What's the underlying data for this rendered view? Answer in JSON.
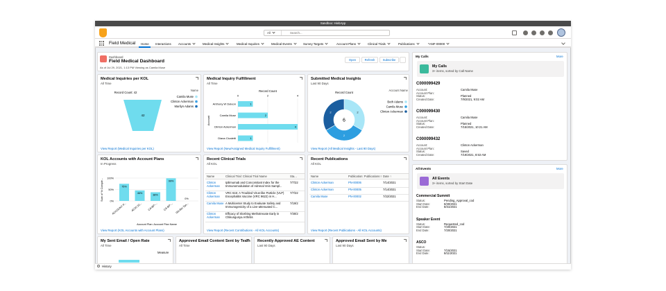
{
  "system_bar": {
    "title": "Sandbox: HiebApp"
  },
  "header": {
    "search_scope": "All",
    "search_placeholder": "Search..."
  },
  "nav": {
    "app_name": "Field Medical",
    "tabs": [
      "Home",
      "Interactions",
      "Accounts",
      "Medical Insights",
      "Medical Inquiries",
      "Medical Events",
      "Survey Targets",
      "Account Plans",
      "Clinical Trials",
      "Publications",
      "*ANF-00000"
    ]
  },
  "dashboard": {
    "label": "Dashboard",
    "title": "Field Medical Dashboard",
    "subtitle": "As of Jul 29, 2021, 1:13 PM·Viewing as Camila Muse",
    "buttons": [
      "Open",
      "Refresh",
      "Subscribe"
    ]
  },
  "widgets": [
    {
      "type": "funnel",
      "title": "Medical Inquiries per KOL",
      "subtitle": "All Time",
      "axis_label": "Record Count: 42",
      "legend_title": "Name",
      "legend": [
        {
          "name": "Camila Muse",
          "color": "#a8e6f7"
        },
        {
          "name": "Clinton Ackerman",
          "color": "#3ca1e6"
        },
        {
          "name": "Marilyn Adams",
          "color": "#1b6fb8"
        }
      ],
      "segments": [
        {
          "value": 42,
          "color": "#6fdcee"
        }
      ],
      "footer": "View Report (Medical Inquiries per KOL)"
    },
    {
      "type": "hbar",
      "title": "Medical Inquiry Fulfillment",
      "subtitle": "All Time",
      "axis_label": "Record Count",
      "y_axis_label": "Account",
      "categories": [
        "Anthony W Deleon",
        "Camila Muse",
        "Clinton Ackerman",
        "Diana Cicaletti"
      ],
      "values": [
        1,
        2,
        4,
        1
      ],
      "xlim": [
        0,
        4
      ],
      "xticks": [
        0,
        2,
        4
      ],
      "color": "#6fdcee",
      "footer": "View Report (New/Assigned Medical Inquiry Fulfillment)"
    },
    {
      "type": "donut",
      "title": "Submitted Medical Insights",
      "subtitle": "Last 90 Days",
      "axis_label": "Record Count",
      "legend_title": "Account Name",
      "total": 6,
      "segments": [
        {
          "name": "Beth Adams",
          "color": "#a8e6f7",
          "value": 2
        },
        {
          "name": "Camila Muse",
          "color": "#2d9ee0",
          "value": 2
        },
        {
          "name": "Clinton Ackerman",
          "color": "#1b5e9f",
          "value": 2
        }
      ],
      "footer": "View Report (All Medical Insights - Last 90 Days)"
    },
    {
      "type": "vbar",
      "title": "KOL Accounts with Account Plans",
      "subtitle": "In Progress",
      "y_axis_label": "Sum of % Comple...",
      "x_axis_label": "Account Plan: Account Plan Name",
      "categories": [
        "ACCOUNT P...",
        "AC00 20...",
        "CA-BP-...",
        "CA-BP-...",
        "Gls-Bin Tan..."
      ],
      "values": [
        75,
        46,
        38,
        99,
        0
      ],
      "value_labels": [
        "75%",
        "46%",
        "38%",
        "99%",
        "0%"
      ],
      "ylim": [
        0,
        100
      ],
      "yticks": [
        {
          "value": 0,
          "label": "0%"
        },
        {
          "value": 50,
          "label": "50%"
        },
        {
          "value": 100,
          "label": "100%"
        }
      ],
      "color": "#6fdcee",
      "footer": "View Report (KOL Accounts with Account Plans)"
    },
    {
      "type": "table",
      "title": "Recent Clinical Trials",
      "subtitle": "All KOL",
      "columns": [
        "Name",
        "Clinical Trial: Clinical Trial Name",
        "Sta..."
      ],
      "rows": [
        [
          "Clinton Ackerman",
          "Ipilimumab and Concomitant Index for the Immunomodulation of Adrenal Vein Sampl...",
          "7/7/22"
        ],
        [
          "Clinton Ackerman",
          "VRC 615: A Troubled Virus-like Particle (VLP) Encephalitis Vaccine (VRC 9622) in H...",
          "7/7/22"
        ],
        [
          "Camila Muse",
          "A Multicenter Study to Evaluate Safety and Immunogenicity of a Live-attenuated C...",
          "7/19/2"
        ],
        [
          "Clinton Ackerman",
          "Efficacy of Sloshing Methotrexate Early in Chikungunya Arthritis",
          "7/30/2"
        ]
      ],
      "footer": "View Report (Recent Contributions - All KOL Accounts)"
    },
    {
      "type": "table",
      "title": "Recent Publications",
      "subtitle": "All KOL",
      "columns": [
        "Name",
        "Publication: Publications ID",
        "Date ↑"
      ],
      "rows": [
        [
          "Clinton Ackerman",
          "PN-00006",
          "7/14/2021"
        ],
        [
          "Clinton Ackerman",
          "PN-00005",
          "7/14/2021"
        ],
        [
          "Camila Muse",
          "PN-00002",
          "7/22/2021"
        ]
      ],
      "footer": "View Report (Recent Publications - All KOL Accounts)"
    }
  ],
  "small_widgets": [
    {
      "title": "My Sent Email / Open Rate",
      "subtitle": "All Time",
      "measure": "Measure"
    },
    {
      "title": "Approved Email Content Sent by Team",
      "subtitle": "All Time"
    },
    {
      "title": "Recently Approved AE Content",
      "subtitle": "Last 90 Days"
    },
    {
      "title": "Approved Email Sent by Me",
      "subtitle": "Last 90 Days"
    }
  ],
  "my_calls": {
    "heading": "My Calls",
    "more": "More",
    "list_title": "My Calls",
    "list_subtitle": "3+ items, sorted by Call Name",
    "records": [
      {
        "name": "C000099429",
        "fields": [
          {
            "label": "Account:",
            "value": "Camila Muse"
          },
          {
            "label": "Account Plan:"
          },
          {
            "label": "Status:",
            "value": "Planned"
          },
          {
            "label": "Created Date:",
            "value": "7/9/2021, 9:02 AM"
          }
        ]
      },
      {
        "name": "C000099430",
        "fields": [
          {
            "label": "Account:",
            "value": "Camila Muse"
          },
          {
            "label": "Account Plan:"
          },
          {
            "label": "Status:",
            "value": "Planned"
          },
          {
            "label": "Created Date:",
            "value": "7/15/2021, 10:21 AM"
          }
        ]
      },
      {
        "name": "C000099432",
        "fields": [
          {
            "label": "Account:",
            "value": "Clinton Ackerman"
          },
          {
            "label": "Account Plan:"
          },
          {
            "label": "Status:",
            "value": "Saved"
          },
          {
            "label": "Created Date:",
            "value": "7/19/2021, 8:53 AM"
          }
        ]
      }
    ]
  },
  "all_events": {
    "heading": "All Events",
    "more": "More",
    "list_title": "All Events",
    "list_subtitle": "3+ items, sorted by Start Date",
    "records": [
      {
        "name": "Commercial Summit",
        "fields": [
          {
            "label": "Status:",
            "value": "Pending_Approval_cod"
          },
          {
            "label": "Start Date:",
            "value": "8/30/2021"
          },
          {
            "label": "End Date:",
            "value": "8/31/2021"
          }
        ]
      },
      {
        "name": "Speaker Event",
        "fields": [
          {
            "label": "Status:",
            "value": "Requested_cod"
          },
          {
            "label": "Start Date:",
            "value": "7/20/2021"
          },
          {
            "label": "End Date:",
            "value": "7/20/2021"
          }
        ]
      },
      {
        "name": "ASCO",
        "fields": [
          {
            "label": "Status:"
          },
          {
            "label": "Start Date:",
            "value": "7/15/2021"
          },
          {
            "label": "End Date:",
            "value": "8/11/2021"
          }
        ]
      }
    ]
  },
  "footer": {
    "history": "History"
  }
}
